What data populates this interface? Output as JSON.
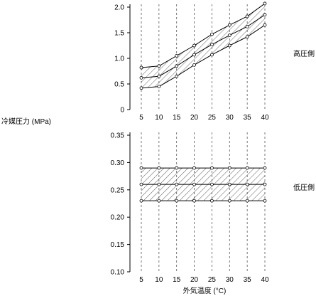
{
  "ylabel": "冷媒圧力 (MPa)",
  "xlabel": "外気温度 (°C)",
  "chart_data": [
    {
      "type": "line",
      "band_label": "高圧側",
      "x": [
        5,
        10,
        15,
        20,
        25,
        30,
        35,
        40
      ],
      "x_ticks": [
        "5",
        "10",
        "15",
        "20",
        "25",
        "30",
        "35",
        "40"
      ],
      "ylim": [
        0,
        2.0
      ],
      "y_ticks": [
        "0",
        "0.5",
        "1.0",
        "1.5",
        "2.0"
      ],
      "y_tick_values": [
        0,
        0.5,
        1.0,
        1.5,
        2.0
      ],
      "grid": "vertical dashed",
      "series": [
        {
          "values": [
            0.82,
            0.85,
            1.05,
            1.25,
            1.47,
            1.65,
            1.82,
            2.07
          ]
        },
        {
          "values": [
            0.62,
            0.65,
            0.85,
            1.07,
            1.27,
            1.45,
            1.62,
            1.85
          ]
        },
        {
          "values": [
            0.42,
            0.45,
            0.65,
            0.87,
            1.07,
            1.25,
            1.42,
            1.65
          ]
        }
      ],
      "band": "hatched between top and bottom series"
    },
    {
      "type": "line",
      "band_label": "低圧側",
      "x": [
        5,
        10,
        15,
        20,
        25,
        30,
        35,
        40
      ],
      "x_ticks": [
        "5",
        "10",
        "15",
        "20",
        "25",
        "30",
        "35",
        "40"
      ],
      "ylim": [
        0.1,
        0.35
      ],
      "y_ticks": [
        "0.10",
        "0.15",
        "0.20",
        "0.25",
        "0.30",
        "0.35"
      ],
      "y_tick_values": [
        0.1,
        0.15,
        0.2,
        0.25,
        0.3,
        0.35
      ],
      "grid": "vertical dashed",
      "series": [
        {
          "values": [
            0.29,
            0.29,
            0.29,
            0.29,
            0.29,
            0.29,
            0.29,
            0.29
          ]
        },
        {
          "values": [
            0.26,
            0.26,
            0.26,
            0.26,
            0.26,
            0.26,
            0.26,
            0.26
          ]
        },
        {
          "values": [
            0.23,
            0.23,
            0.23,
            0.23,
            0.23,
            0.23,
            0.23,
            0.23
          ]
        }
      ],
      "band": "hatched between top and bottom series"
    }
  ]
}
